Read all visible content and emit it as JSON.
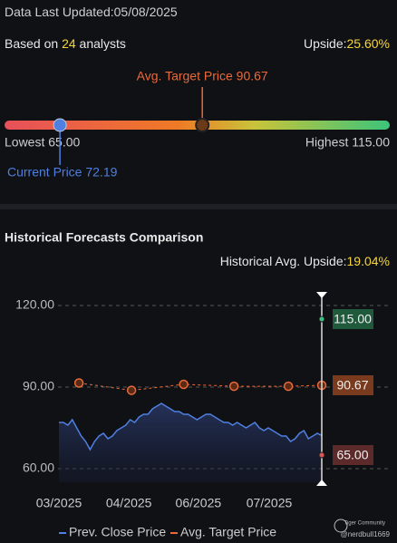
{
  "header": {
    "updated_label": "Data Last Updated:",
    "updated_date": "05/08/2025",
    "based_on": "Based on",
    "analysts": 24,
    "analysts_suffix": "analysts",
    "upside_label": "Upside:",
    "upside": "25.60%"
  },
  "range": {
    "low": 65,
    "low_label": "Lowest 65.00",
    "high": 115,
    "high_label": "Highest 115.00",
    "current": 72.19,
    "current_label": "Current Price 72.19",
    "target": 90.67,
    "target_label": "Avg. Target Price 90.67"
  },
  "history": {
    "title": "Historical Forecasts Comparison",
    "upside_label": "Historical Avg. Upside:",
    "upside": "19.04%"
  },
  "chart_data": {
    "type": "line",
    "ylim": [
      55,
      125
    ],
    "yticks": [
      {
        "value": 120,
        "label": "120.00"
      },
      {
        "value": 90,
        "label": "90.00"
      },
      {
        "value": 60,
        "label": "60.00"
      }
    ],
    "xlim": [
      0,
      59
    ],
    "xticks": [
      {
        "value": 0,
        "label": "03/2025"
      },
      {
        "value": 15.7,
        "label": "04/2025"
      },
      {
        "value": 31.3,
        "label": "06/2025"
      },
      {
        "value": 47.2,
        "label": "07/2025"
      }
    ],
    "grid": true,
    "series": [
      {
        "name": "Prev. Close Price",
        "color": "#4f7fe0",
        "values": [
          77,
          77,
          76,
          78,
          75,
          72,
          70,
          67,
          70,
          72,
          73,
          71,
          72,
          74,
          75,
          76,
          78,
          77,
          79,
          80,
          80,
          82,
          83,
          84,
          83,
          82,
          81,
          81,
          80,
          80,
          79,
          78,
          79,
          80,
          80,
          79,
          78,
          77,
          77,
          76,
          77,
          76,
          75,
          76,
          77,
          75,
          74,
          75,
          74,
          73,
          72,
          72,
          70,
          71,
          73,
          74,
          71,
          72,
          73,
          72.19
        ]
      },
      {
        "name": "Avg. Target Price",
        "color": "#e86a3a",
        "x": [
          4.5,
          16.3,
          28,
          39.3,
          51.5,
          59
        ],
        "values": [
          91.5,
          88.8,
          91,
          90.3,
          90.3,
          90.67
        ]
      }
    ],
    "annotations": [
      {
        "value": 115,
        "label": "115.00",
        "color": "#1f5a3c",
        "dot": "#3fbf7f"
      },
      {
        "value": 90.67,
        "label": "90.67",
        "color": "#7a3a1e",
        "dot": "#e86a3a"
      },
      {
        "value": 65,
        "label": "65.00",
        "color": "#5c2a2a",
        "dot": "#d55"
      }
    ]
  },
  "watermark": {
    "brand": "Tiger Community",
    "user": "@nerdbull1669"
  }
}
